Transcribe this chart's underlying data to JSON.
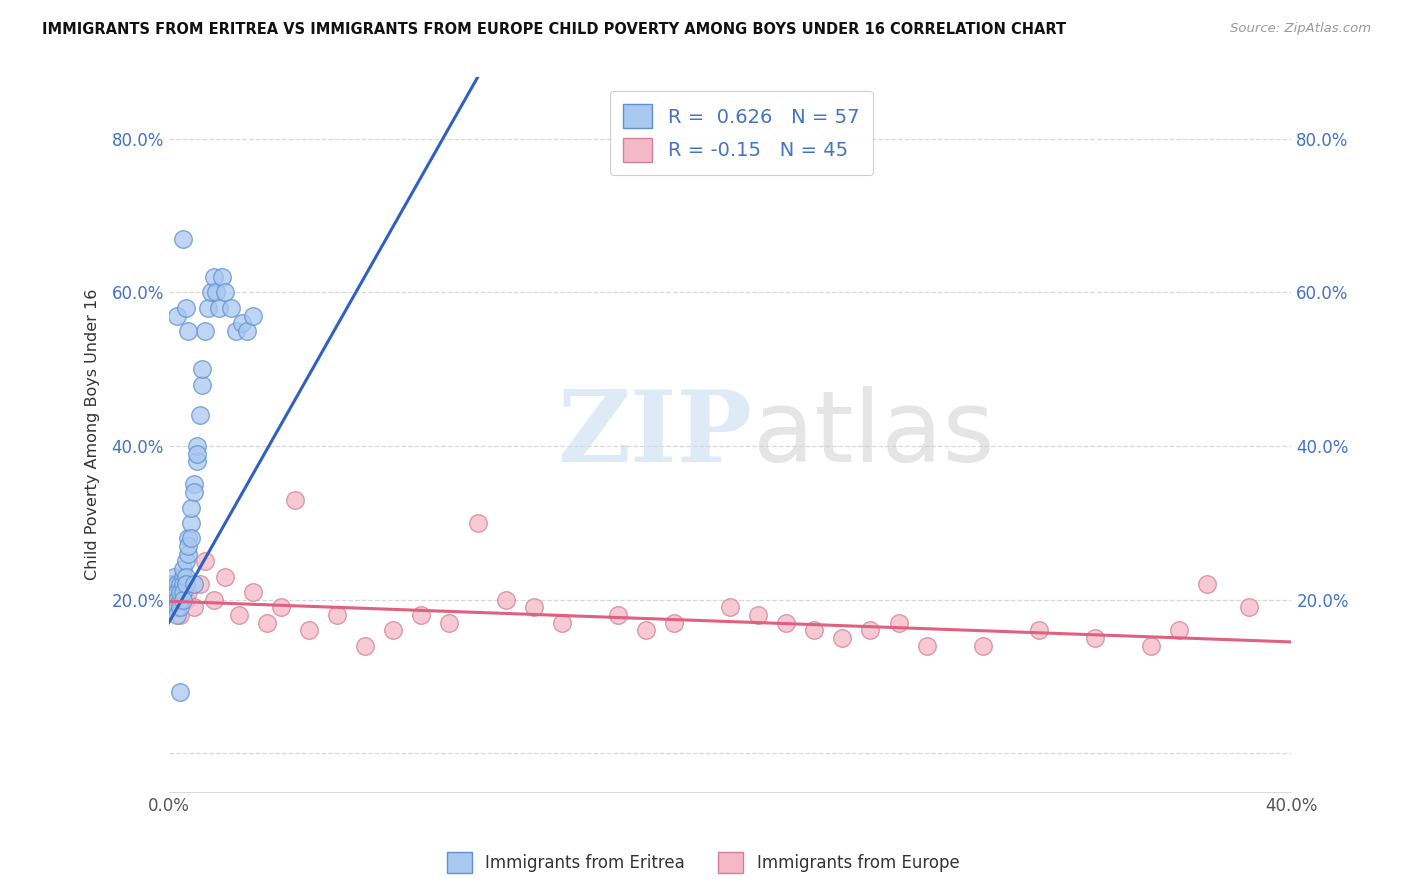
{
  "title": "IMMIGRANTS FROM ERITREA VS IMMIGRANTS FROM EUROPE CHILD POVERTY AMONG BOYS UNDER 16 CORRELATION CHART",
  "source": "Source: ZipAtlas.com",
  "ylabel": "Child Poverty Among Boys Under 16",
  "watermark_zip": "ZIP",
  "watermark_atlas": "atlas",
  "xlim": [
    0.0,
    0.4
  ],
  "ylim": [
    -0.05,
    0.88
  ],
  "x_ticks": [
    0.0,
    0.1,
    0.2,
    0.3,
    0.4
  ],
  "x_tick_labels": [
    "0.0%",
    "",
    "",
    "",
    "40.0%"
  ],
  "y_ticks": [
    0.0,
    0.2,
    0.4,
    0.6,
    0.8
  ],
  "y_tick_labels_left": [
    "",
    "20.0%",
    "40.0%",
    "60.0%",
    "80.0%"
  ],
  "y_tick_labels_right": [
    "",
    "20.0%",
    "40.0%",
    "60.0%",
    "80.0%"
  ],
  "eritrea_color": "#a8c8f0",
  "europe_color": "#f5b8c8",
  "eritrea_edge": "#6090d0",
  "europe_edge": "#d08098",
  "line_eritrea": "#3060c0",
  "line_europe": "#e06080",
  "R_eritrea": 0.626,
  "N_eritrea": 57,
  "R_europe": -0.15,
  "N_europe": 45,
  "background_color": "#ffffff",
  "grid_color": "#d8d8d8",
  "legend_label_eritrea": "Immigrants from Eritrea",
  "legend_label_europe": "Immigrants from Europe",
  "eritrea_x": [
    0.001,
    0.001,
    0.001,
    0.002,
    0.002,
    0.002,
    0.002,
    0.003,
    0.003,
    0.003,
    0.003,
    0.003,
    0.004,
    0.004,
    0.004,
    0.004,
    0.005,
    0.005,
    0.005,
    0.005,
    0.005,
    0.006,
    0.006,
    0.006,
    0.007,
    0.007,
    0.007,
    0.008,
    0.008,
    0.008,
    0.009,
    0.009,
    0.01,
    0.01,
    0.01,
    0.011,
    0.012,
    0.012,
    0.013,
    0.014,
    0.015,
    0.016,
    0.017,
    0.018,
    0.019,
    0.02,
    0.022,
    0.024,
    0.026,
    0.028,
    0.03,
    0.005,
    0.003,
    0.006,
    0.007,
    0.009,
    0.004
  ],
  "eritrea_y": [
    0.21,
    0.2,
    0.22,
    0.2,
    0.22,
    0.21,
    0.23,
    0.22,
    0.21,
    0.2,
    0.19,
    0.18,
    0.22,
    0.2,
    0.21,
    0.19,
    0.23,
    0.22,
    0.21,
    0.2,
    0.24,
    0.25,
    0.23,
    0.22,
    0.28,
    0.26,
    0.27,
    0.3,
    0.28,
    0.32,
    0.35,
    0.34,
    0.38,
    0.4,
    0.39,
    0.44,
    0.48,
    0.5,
    0.55,
    0.58,
    0.6,
    0.62,
    0.6,
    0.58,
    0.62,
    0.6,
    0.58,
    0.55,
    0.56,
    0.55,
    0.57,
    0.67,
    0.57,
    0.58,
    0.55,
    0.22,
    0.08
  ],
  "europe_x": [
    0.001,
    0.002,
    0.003,
    0.004,
    0.005,
    0.006,
    0.007,
    0.009,
    0.011,
    0.013,
    0.016,
    0.02,
    0.025,
    0.03,
    0.035,
    0.04,
    0.05,
    0.06,
    0.07,
    0.08,
    0.09,
    0.1,
    0.11,
    0.12,
    0.13,
    0.14,
    0.16,
    0.17,
    0.18,
    0.2,
    0.21,
    0.22,
    0.23,
    0.24,
    0.25,
    0.26,
    0.27,
    0.29,
    0.31,
    0.33,
    0.35,
    0.36,
    0.37,
    0.385,
    0.045
  ],
  "europe_y": [
    0.2,
    0.19,
    0.21,
    0.18,
    0.22,
    0.2,
    0.21,
    0.19,
    0.22,
    0.25,
    0.2,
    0.23,
    0.18,
    0.21,
    0.17,
    0.19,
    0.16,
    0.18,
    0.14,
    0.16,
    0.18,
    0.17,
    0.3,
    0.2,
    0.19,
    0.17,
    0.18,
    0.16,
    0.17,
    0.19,
    0.18,
    0.17,
    0.16,
    0.15,
    0.16,
    0.17,
    0.14,
    0.14,
    0.16,
    0.15,
    0.14,
    0.16,
    0.22,
    0.19,
    0.33
  ],
  "eritrea_line_x": [
    0.0,
    0.11
  ],
  "eritrea_line_y": [
    0.17,
    0.88
  ],
  "europe_line_x": [
    0.0,
    0.4
  ],
  "europe_line_y": [
    0.198,
    0.145
  ]
}
